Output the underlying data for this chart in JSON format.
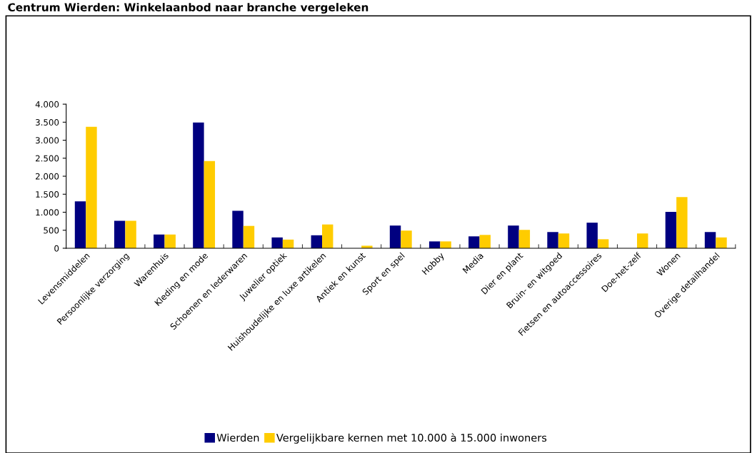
{
  "chart_data": {
    "type": "bar",
    "title": "Centrum Wierden: Winkelaanbod naar branche vergeleken",
    "categories": [
      "Levensmiddelen",
      "Persoonlijke verzorging",
      "Warenhuis",
      "Kleding en mode",
      "Schoenen en lederwaren",
      "Juwelier optiek",
      "Huishoudelijke en luxe artikelen",
      "Antiek en kunst",
      "Sport en spel",
      "Hobby",
      "Media",
      "Dier en plant",
      "Bruin- en witgoed",
      "Fietsen en autoaccessoires",
      "Doe-het-zelf",
      "Wonen",
      "Overige detailhandel"
    ],
    "series": [
      {
        "name": "Wierden",
        "color": "#000080",
        "values": [
          1300,
          760,
          380,
          3490,
          1040,
          300,
          360,
          0,
          630,
          190,
          330,
          630,
          450,
          710,
          0,
          1010,
          450
        ]
      },
      {
        "name": "Vergelijkbare kernen met 10.000 à 15.000 inwoners",
        "color": "#ffcc00",
        "values": [
          3370,
          760,
          380,
          2420,
          620,
          240,
          660,
          70,
          490,
          190,
          370,
          510,
          410,
          250,
          410,
          1420,
          300
        ]
      }
    ],
    "ylim": [
      0,
      4000
    ],
    "yticks": [
      {
        "value": 0,
        "label": "0"
      },
      {
        "value": 500,
        "label": "500"
      },
      {
        "value": 1000,
        "label": "1.000"
      },
      {
        "value": 1500,
        "label": "1.500"
      },
      {
        "value": 2000,
        "label": "2.000"
      },
      {
        "value": 2500,
        "label": "2.500"
      },
      {
        "value": 3000,
        "label": "3.000"
      },
      {
        "value": 3500,
        "label": "3.500"
      },
      {
        "value": 4000,
        "label": "4.000"
      }
    ],
    "grid": false,
    "legend": "bottom"
  }
}
